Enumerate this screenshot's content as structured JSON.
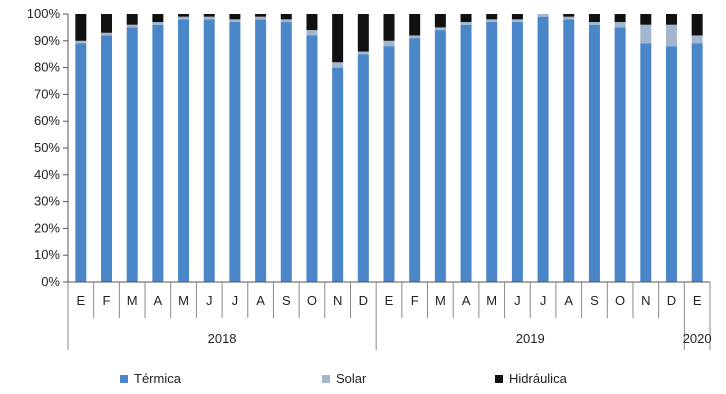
{
  "chart_data": {
    "type": "bar",
    "stacked": true,
    "percent_axis": true,
    "categories": [
      "E",
      "F",
      "M",
      "A",
      "M",
      "J",
      "J",
      "A",
      "S",
      "O",
      "N",
      "D",
      "E",
      "F",
      "M",
      "A",
      "M",
      "J",
      "J",
      "A",
      "S",
      "O",
      "N",
      "D",
      "E"
    ],
    "groups": [
      {
        "label": "2018",
        "start": 0,
        "end": 11
      },
      {
        "label": "2019",
        "start": 12,
        "end": 23
      },
      {
        "label": "2020",
        "start": 24,
        "end": 24
      }
    ],
    "series": [
      {
        "name": "Térmica",
        "color": "#4a86c8",
        "values": [
          89,
          92,
          95,
          96,
          98,
          98,
          97,
          98,
          97,
          92,
          80,
          85,
          88,
          91,
          94,
          96,
          97,
          97,
          99,
          98,
          96,
          95,
          89,
          88,
          89
        ]
      },
      {
        "name": "Solar",
        "color": "#a3b6cf",
        "values": [
          1,
          1,
          1,
          1,
          1,
          1,
          1,
          1,
          1,
          2,
          2,
          1,
          2,
          1,
          1,
          1,
          1,
          1,
          1,
          1,
          1,
          2,
          7,
          8,
          3
        ]
      },
      {
        "name": "Hidráulica",
        "color": "#111111",
        "values": [
          10,
          7,
          4,
          3,
          1,
          1,
          2,
          1,
          2,
          6,
          18,
          14,
          10,
          8,
          5,
          3,
          2,
          2,
          0,
          1,
          3,
          3,
          4,
          4,
          8
        ]
      }
    ],
    "y_ticks": [
      "0%",
      "10%",
      "20%",
      "30%",
      "40%",
      "50%",
      "60%",
      "70%",
      "80%",
      "90%",
      "100%"
    ],
    "ylim": [
      0,
      100
    ],
    "grid": false,
    "legend_position": "bottom"
  }
}
